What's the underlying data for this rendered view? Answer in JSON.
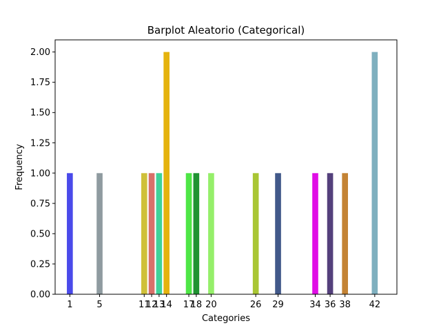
{
  "chart_data": {
    "type": "bar",
    "title": "Barplot Aleatorio (Categorical)",
    "xlabel": "Categories",
    "ylabel": "Frequency",
    "xlim": [
      -0.98,
      44.98
    ],
    "ylim": [
      0,
      2.1
    ],
    "yticks": [
      "0.00",
      "0.25",
      "0.50",
      "0.75",
      "1.00",
      "1.25",
      "1.50",
      "1.75",
      "2.00"
    ],
    "grid": false,
    "bars": [
      {
        "x": 1,
        "label": "1",
        "value": 1,
        "color": "#4a4aea"
      },
      {
        "x": 5,
        "label": "5",
        "value": 1,
        "color": "#8f9ba0"
      },
      {
        "x": 11,
        "label": "11",
        "value": 1,
        "color": "#cfc03a"
      },
      {
        "x": 12,
        "label": "12",
        "value": 1,
        "color": "#d8706a"
      },
      {
        "x": 13,
        "label": "13",
        "value": 1,
        "color": "#3ed39a"
      },
      {
        "x": 14,
        "label": "14",
        "value": 2,
        "color": "#e5b30e"
      },
      {
        "x": 17,
        "label": "17",
        "value": 1,
        "color": "#4ee646"
      },
      {
        "x": 18,
        "label": "18",
        "value": 1,
        "color": "#1f9332"
      },
      {
        "x": 20,
        "label": "20",
        "value": 1,
        "color": "#95ef6a"
      },
      {
        "x": 26,
        "label": "26",
        "value": 1,
        "color": "#a9c634"
      },
      {
        "x": 29,
        "label": "29",
        "value": 1,
        "color": "#42598a"
      },
      {
        "x": 34,
        "label": "34",
        "value": 1,
        "color": "#e00ee6"
      },
      {
        "x": 36,
        "label": "36",
        "value": 1,
        "color": "#54407c"
      },
      {
        "x": 38,
        "label": "38",
        "value": 1,
        "color": "#c48335"
      },
      {
        "x": 42,
        "label": "42",
        "value": 2,
        "color": "#7fb0bf"
      }
    ]
  }
}
